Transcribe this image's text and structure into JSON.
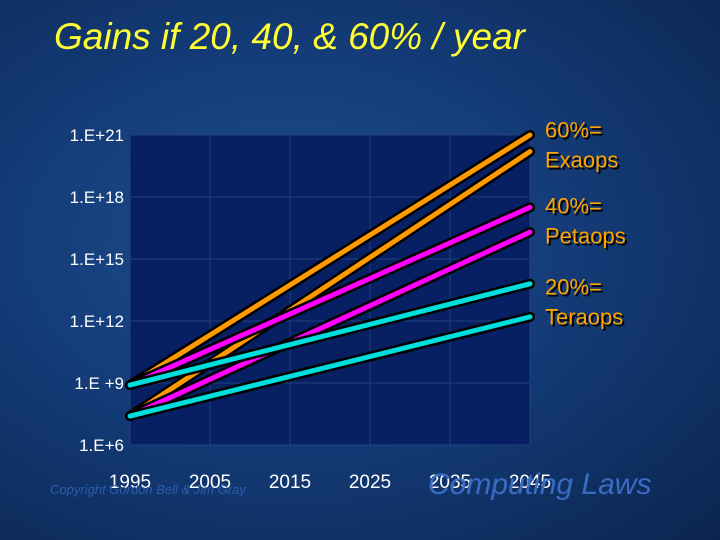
{
  "page": {
    "title": "Gains if 20, 40, & 60% / year"
  },
  "footer": {
    "copyright": "Copyright Gordon Bell & Jim Gray",
    "brand": "Computing Laws"
  },
  "chart_data": {
    "type": "line",
    "title": "Gains if 20, 40, & 60% / year",
    "y_scale": "log10",
    "ylim_exponent": [
      6,
      21
    ],
    "xlim": [
      1995,
      2045
    ],
    "grid": true,
    "x_ticks": [
      {
        "value": 1995,
        "label": "1995"
      },
      {
        "value": 2005,
        "label": "2005"
      },
      {
        "value": 2015,
        "label": "2015"
      },
      {
        "value": 2025,
        "label": "2025"
      },
      {
        "value": 2035,
        "label": "2035"
      },
      {
        "value": 2045,
        "label": "2045"
      }
    ],
    "y_ticks": [
      {
        "exponent": 21,
        "label": "1.E+21"
      },
      {
        "exponent": 18,
        "label": "1.E+18"
      },
      {
        "exponent": 15,
        "label": "1.E+15"
      },
      {
        "exponent": 12,
        "label": "1.E+12"
      },
      {
        "exponent": 9,
        "label": "1.E +9"
      },
      {
        "exponent": 6,
        "label": "1.E+6"
      }
    ],
    "series": [
      {
        "name": "60%",
        "color": "#ff9900",
        "x": [
          1995,
          2045
        ],
        "exponent": [
          7.4,
          20.2
        ]
      },
      {
        "name": "60%",
        "color": "#ff9900",
        "x": [
          1995,
          2045
        ],
        "exponent": [
          8.9,
          21.0
        ]
      },
      {
        "name": "40%",
        "color": "#ff00ff",
        "x": [
          1995,
          2045
        ],
        "exponent": [
          7.4,
          16.3
        ]
      },
      {
        "name": "40%",
        "color": "#ff00ff",
        "x": [
          1995,
          2045
        ],
        "exponent": [
          8.9,
          17.5
        ]
      },
      {
        "name": "20%",
        "color": "#00dddd",
        "x": [
          1995,
          2045
        ],
        "exponent": [
          7.4,
          12.2
        ]
      },
      {
        "name": "20%",
        "color": "#00dddd",
        "x": [
          1995,
          2045
        ],
        "exponent": [
          8.9,
          13.8
        ]
      }
    ],
    "annotations": [
      {
        "series": "60%",
        "lines": [
          "60%=",
          "Exaops"
        ],
        "anchor_exponent": 20.6
      },
      {
        "series": "40%",
        "lines": [
          "40%=",
          "Petaops"
        ],
        "anchor_exponent": 16.9
      },
      {
        "series": "20%",
        "lines": [
          "20%=",
          "Teraops"
        ],
        "anchor_exponent": 13.0
      }
    ]
  }
}
